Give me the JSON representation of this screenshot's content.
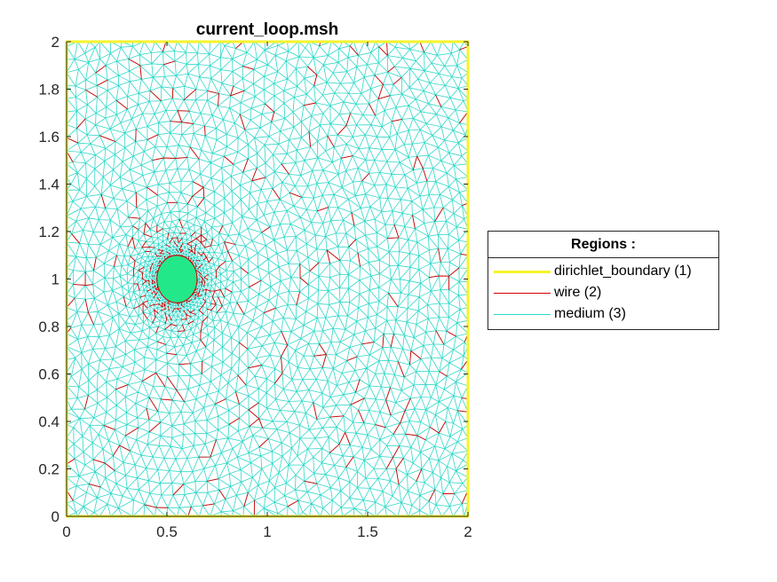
{
  "chart_data": {
    "type": "mesh",
    "title": "current_loop.msh",
    "xlim": [
      0,
      2
    ],
    "ylim": [
      0,
      2
    ],
    "x_ticks": [
      0,
      0.5,
      1,
      1.5,
      2
    ],
    "x_tick_labels": [
      "0",
      "0.5",
      "1",
      "1.5",
      "2"
    ],
    "y_ticks": [
      0,
      0.2,
      0.4,
      0.6,
      0.8,
      1,
      1.2,
      1.4,
      1.6,
      1.8,
      2
    ],
    "y_tick_labels": [
      "0",
      "0.2",
      "0.4",
      "0.6",
      "0.8",
      "1",
      "1.2",
      "1.4",
      "1.6",
      "1.8",
      "2"
    ],
    "grid": false,
    "legend": {
      "title": "Regions :",
      "placement": "right",
      "entries": [
        {
          "label": "dirichlet_boundary (1)",
          "color": "#FFFF00"
        },
        {
          "label": "wire (2)",
          "color": "#E60000"
        },
        {
          "label": "medium (3)",
          "color": "#33D9D0"
        }
      ]
    },
    "refinement_center": [
      0.55,
      1.0
    ],
    "wire_radius": 0.1
  },
  "colors": {
    "boundary": "#F7F32A",
    "wire": "#D40000",
    "medium": "#2ED8C8",
    "wire_fill": "#22E88A",
    "axis": "#262626"
  }
}
